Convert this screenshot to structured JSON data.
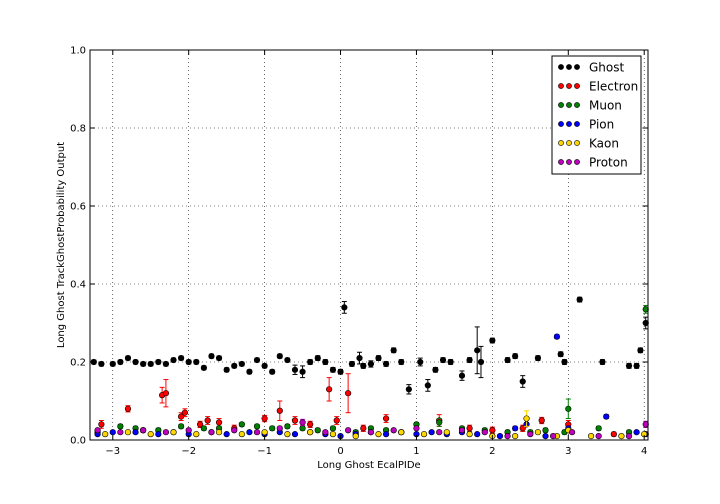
{
  "chart_data": {
    "type": "scatter",
    "title": "",
    "xlabel": "Long Ghost EcalPIDe",
    "ylabel": "Long Ghost TrackGhostProbability Output",
    "xlim": [
      -3.3,
      4.05
    ],
    "ylim": [
      0.0,
      1.0
    ],
    "xticks": [
      -3,
      -2,
      -1,
      0,
      1,
      2,
      3,
      4
    ],
    "yticks": [
      0.0,
      0.2,
      0.4,
      0.6,
      0.8,
      1.0
    ],
    "grid": true,
    "legend_position": "top-right",
    "series": [
      {
        "name": "Ghost",
        "color": "#000000",
        "x": [
          -3.25,
          -3.15,
          -3.0,
          -2.9,
          -2.8,
          -2.7,
          -2.6,
          -2.5,
          -2.4,
          -2.3,
          -2.2,
          -2.1,
          -2.0,
          -1.9,
          -1.8,
          -1.7,
          -1.6,
          -1.5,
          -1.4,
          -1.3,
          -1.2,
          -1.1,
          -1.0,
          -0.9,
          -0.8,
          -0.7,
          -0.6,
          -0.5,
          -0.4,
          -0.3,
          -0.2,
          -0.1,
          0.0,
          0.05,
          0.15,
          0.25,
          0.3,
          0.4,
          0.5,
          0.6,
          0.7,
          0.8,
          0.9,
          1.05,
          1.15,
          1.25,
          1.35,
          1.45,
          1.6,
          1.7,
          1.8,
          1.85,
          2.0,
          2.2,
          2.3,
          2.4,
          2.6,
          2.9,
          2.95,
          3.15,
          3.45,
          3.8,
          3.9,
          3.95,
          4.02
        ],
        "y": [
          0.2,
          0.195,
          0.195,
          0.2,
          0.21,
          0.2,
          0.195,
          0.195,
          0.2,
          0.195,
          0.205,
          0.21,
          0.2,
          0.2,
          0.185,
          0.215,
          0.21,
          0.18,
          0.19,
          0.195,
          0.175,
          0.205,
          0.19,
          0.175,
          0.215,
          0.205,
          0.18,
          0.175,
          0.2,
          0.21,
          0.2,
          0.18,
          0.175,
          0.34,
          0.195,
          0.21,
          0.19,
          0.195,
          0.21,
          0.195,
          0.23,
          0.2,
          0.13,
          0.2,
          0.14,
          0.18,
          0.205,
          0.2,
          0.165,
          0.205,
          0.23,
          0.2,
          0.255,
          0.205,
          0.215,
          0.15,
          0.21,
          0.22,
          0.2,
          0.36,
          0.2,
          0.19,
          0.19,
          0.23,
          0.3
        ],
        "err": [
          0.005,
          0.005,
          0.005,
          0.005,
          0.005,
          0.005,
          0.005,
          0.005,
          0.005,
          0.005,
          0.005,
          0.005,
          0.005,
          0.005,
          0.005,
          0.005,
          0.005,
          0.005,
          0.005,
          0.005,
          0.005,
          0.005,
          0.005,
          0.005,
          0.005,
          0.005,
          0.012,
          0.015,
          0.006,
          0.006,
          0.006,
          0.006,
          0.006,
          0.015,
          0.006,
          0.015,
          0.006,
          0.008,
          0.006,
          0.006,
          0.006,
          0.006,
          0.012,
          0.01,
          0.015,
          0.006,
          0.006,
          0.006,
          0.012,
          0.006,
          0.06,
          0.04,
          0.006,
          0.006,
          0.006,
          0.015,
          0.006,
          0.006,
          0.006,
          0.006,
          0.006,
          0.006,
          0.006,
          0.006,
          0.015
        ]
      },
      {
        "name": "Electron",
        "color": "#ff0000",
        "x": [
          -3.15,
          -2.8,
          -2.6,
          -2.35,
          -2.3,
          -2.1,
          -2.05,
          -1.85,
          -1.75,
          -1.6,
          -1.4,
          -1.0,
          -0.8,
          -0.6,
          -0.4,
          -0.15,
          -0.05,
          0.1,
          0.3,
          0.6,
          1.3,
          1.7,
          2.0,
          2.4,
          2.65,
          3.0,
          3.6
        ],
        "y": [
          0.04,
          0.08,
          0.025,
          0.115,
          0.12,
          0.06,
          0.07,
          0.04,
          0.05,
          0.045,
          0.03,
          0.055,
          0.075,
          0.05,
          0.04,
          0.13,
          0.05,
          0.12,
          0.03,
          0.055,
          0.05,
          0.03,
          0.025,
          0.03,
          0.05,
          0.04,
          0.015
        ],
        "err": [
          0.01,
          0.008,
          0.005,
          0.02,
          0.035,
          0.01,
          0.01,
          0.008,
          0.01,
          0.01,
          0.008,
          0.008,
          0.025,
          0.01,
          0.008,
          0.03,
          0.01,
          0.05,
          0.008,
          0.01,
          0.015,
          0.008,
          0.008,
          0.008,
          0.008,
          0.01,
          0.005
        ]
      },
      {
        "name": "Muon",
        "color": "#008000",
        "x": [
          -3.2,
          -2.9,
          -2.7,
          -2.4,
          -2.1,
          -1.8,
          -1.6,
          -1.3,
          -1.1,
          -0.9,
          -0.7,
          -0.5,
          -0.3,
          -0.1,
          0.2,
          0.4,
          0.6,
          0.8,
          1.0,
          1.3,
          1.6,
          1.9,
          2.2,
          2.5,
          2.7,
          2.95,
          3.0,
          3.4,
          3.8,
          4.02
        ],
        "y": [
          0.02,
          0.035,
          0.03,
          0.025,
          0.035,
          0.03,
          0.03,
          0.04,
          0.035,
          0.03,
          0.035,
          0.03,
          0.025,
          0.03,
          0.02,
          0.03,
          0.025,
          0.02,
          0.04,
          0.045,
          0.03,
          0.025,
          0.02,
          0.02,
          0.025,
          0.02,
          0.08,
          0.03,
          0.02,
          0.335
        ],
        "err": [
          0.005,
          0.005,
          0.005,
          0.005,
          0.005,
          0.005,
          0.005,
          0.005,
          0.005,
          0.005,
          0.005,
          0.005,
          0.005,
          0.005,
          0.005,
          0.005,
          0.005,
          0.005,
          0.005,
          0.01,
          0.005,
          0.005,
          0.005,
          0.005,
          0.005,
          0.005,
          0.025,
          0.005,
          0.005,
          0.01
        ]
      },
      {
        "name": "Pion",
        "color": "#0000ff",
        "x": [
          -3.2,
          -3.0,
          -2.7,
          -2.4,
          -2.2,
          -2.0,
          -1.7,
          -1.5,
          -1.2,
          -1.0,
          -0.8,
          -0.6,
          -0.4,
          -0.2,
          0.0,
          0.2,
          0.4,
          0.6,
          0.8,
          1.0,
          1.2,
          1.4,
          1.6,
          1.8,
          2.1,
          2.3,
          2.45,
          2.7,
          2.85,
          3.0,
          3.5,
          3.9,
          4.02
        ],
        "y": [
          0.015,
          0.02,
          0.02,
          0.015,
          0.02,
          0.015,
          0.02,
          0.015,
          0.02,
          0.015,
          0.02,
          0.015,
          0.02,
          0.015,
          0.01,
          0.015,
          0.02,
          0.015,
          0.02,
          0.015,
          0.02,
          0.015,
          0.02,
          0.015,
          0.01,
          0.03,
          0.04,
          0.01,
          0.265,
          0.03,
          0.06,
          0.02,
          0.015
        ],
        "err": [
          0.003,
          0.003,
          0.003,
          0.003,
          0.003,
          0.003,
          0.003,
          0.003,
          0.003,
          0.003,
          0.003,
          0.003,
          0.003,
          0.003,
          0.003,
          0.003,
          0.003,
          0.003,
          0.003,
          0.003,
          0.003,
          0.003,
          0.003,
          0.003,
          0.003,
          0.005,
          0.005,
          0.003,
          0.005,
          0.005,
          0.005,
          0.003,
          0.003
        ]
      },
      {
        "name": "Kaon",
        "color": "#ffd700",
        "x": [
          -3.1,
          -2.8,
          -2.5,
          -2.2,
          -1.9,
          -1.6,
          -1.3,
          -1.0,
          -0.7,
          -0.4,
          -0.1,
          0.2,
          0.5,
          0.8,
          1.1,
          1.4,
          1.7,
          2.0,
          2.3,
          2.45,
          2.6,
          2.85,
          3.0,
          3.3,
          3.7,
          4.0
        ],
        "y": [
          0.015,
          0.02,
          0.015,
          0.02,
          0.015,
          0.02,
          0.015,
          0.02,
          0.015,
          0.02,
          0.015,
          0.01,
          0.015,
          0.02,
          0.015,
          0.02,
          0.015,
          0.01,
          0.01,
          0.055,
          0.02,
          0.01,
          0.025,
          0.01,
          0.01,
          0.015
        ],
        "err": [
          0.003,
          0.003,
          0.003,
          0.003,
          0.003,
          0.003,
          0.003,
          0.003,
          0.003,
          0.003,
          0.003,
          0.003,
          0.003,
          0.003,
          0.003,
          0.003,
          0.003,
          0.003,
          0.003,
          0.02,
          0.003,
          0.003,
          0.005,
          0.003,
          0.003,
          0.003
        ]
      },
      {
        "name": "Proton",
        "color": "#bf00bf",
        "x": [
          -3.2,
          -2.9,
          -2.6,
          -2.3,
          -2.0,
          -1.7,
          -1.4,
          -1.1,
          -0.8,
          -0.5,
          -0.2,
          0.1,
          0.4,
          0.7,
          1.0,
          1.3,
          1.6,
          1.9,
          2.2,
          2.5,
          2.8,
          3.05,
          3.4,
          3.8,
          4.02
        ],
        "y": [
          0.025,
          0.02,
          0.025,
          0.02,
          0.025,
          0.02,
          0.025,
          0.02,
          0.03,
          0.045,
          0.02,
          0.025,
          0.02,
          0.025,
          0.03,
          0.02,
          0.025,
          0.02,
          0.01,
          0.015,
          0.01,
          0.02,
          0.01,
          0.01,
          0.04
        ],
        "err": [
          0.003,
          0.003,
          0.003,
          0.003,
          0.003,
          0.003,
          0.003,
          0.003,
          0.003,
          0.008,
          0.003,
          0.003,
          0.003,
          0.003,
          0.003,
          0.003,
          0.003,
          0.003,
          0.003,
          0.003,
          0.003,
          0.003,
          0.003,
          0.003,
          0.008
        ]
      }
    ]
  }
}
